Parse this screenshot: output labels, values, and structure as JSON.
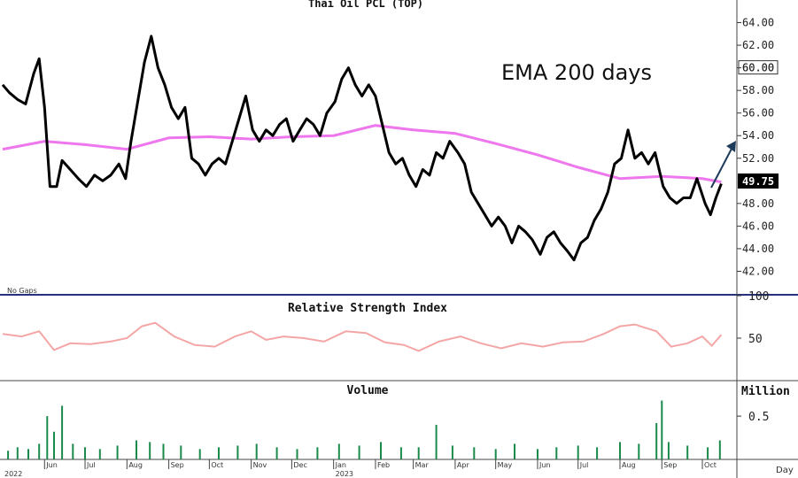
{
  "chart_data": {
    "type": "line",
    "title": "Thai Oil PCL (TOP)",
    "annotation": "EMA 200 days",
    "price_panel_note": "No Gaps",
    "last_price_label": "49.75",
    "colors": {
      "price": "#000000",
      "ema": "#ee77ee",
      "rsi": "#f4a6a6",
      "volume": "#1a8a4a",
      "arrow": "#1f3b5c",
      "last_price_bg": "#000000"
    },
    "price_axis": {
      "range": [
        40,
        66
      ],
      "ticks": [
        "42.00",
        "44.00",
        "46.00",
        "48.00",
        "52.00",
        "54.00",
        "56.00",
        "58.00",
        "60.00",
        "62.00",
        "64.00"
      ],
      "boxed_tick": "60.00"
    },
    "x_axis": {
      "range": [
        "2022-05-01",
        "2023-10-20"
      ],
      "months": [
        {
          "label": "Jun",
          "date": "2022-06-01"
        },
        {
          "label": "Jul",
          "date": "2022-07-01"
        },
        {
          "label": "Aug",
          "date": "2022-08-01"
        },
        {
          "label": "Sep",
          "date": "2022-09-01"
        },
        {
          "label": "Oct",
          "date": "2022-10-01"
        },
        {
          "label": "Nov",
          "date": "2022-11-01"
        },
        {
          "label": "Dec",
          "date": "2022-12-01"
        },
        {
          "label": "Jan",
          "date": "2023-01-01"
        },
        {
          "label": "Feb",
          "date": "2023-02-01"
        },
        {
          "label": "Mar",
          "date": "2023-03-01"
        },
        {
          "label": "Apr",
          "date": "2023-04-01"
        },
        {
          "label": "May",
          "date": "2023-05-01"
        },
        {
          "label": "Jun",
          "date": "2023-06-01"
        },
        {
          "label": "Jul",
          "date": "2023-07-01"
        },
        {
          "label": "Aug",
          "date": "2023-08-01"
        },
        {
          "label": "Sep",
          "date": "2023-09-01"
        },
        {
          "label": "Oct",
          "date": "2023-10-01"
        }
      ],
      "years": [
        {
          "label": "2022",
          "date": "2022-05-01"
        },
        {
          "label": "2023",
          "date": "2023-01-01"
        }
      ],
      "unit_label": "Day"
    },
    "price_series": [
      [
        "2022-05-01",
        58.5
      ],
      [
        "2022-05-06",
        57.8
      ],
      [
        "2022-05-12",
        57.2
      ],
      [
        "2022-05-18",
        56.8
      ],
      [
        "2022-05-24",
        59.5
      ],
      [
        "2022-05-28",
        60.8
      ],
      [
        "2022-06-01",
        56.5
      ],
      [
        "2022-06-05",
        49.5
      ],
      [
        "2022-06-10",
        49.5
      ],
      [
        "2022-06-14",
        51.8
      ],
      [
        "2022-06-20",
        51.0
      ],
      [
        "2022-06-26",
        50.2
      ],
      [
        "2022-07-02",
        49.5
      ],
      [
        "2022-07-08",
        50.5
      ],
      [
        "2022-07-14",
        50.0
      ],
      [
        "2022-07-20",
        50.5
      ],
      [
        "2022-07-26",
        51.5
      ],
      [
        "2022-07-31",
        50.2
      ],
      [
        "2022-08-04",
        53.5
      ],
      [
        "2022-08-09",
        57.0
      ],
      [
        "2022-08-14",
        60.5
      ],
      [
        "2022-08-19",
        62.8
      ],
      [
        "2022-08-24",
        60.0
      ],
      [
        "2022-08-29",
        58.5
      ],
      [
        "2022-09-03",
        56.5
      ],
      [
        "2022-09-08",
        55.5
      ],
      [
        "2022-09-13",
        56.5
      ],
      [
        "2022-09-18",
        52.0
      ],
      [
        "2022-09-23",
        51.5
      ],
      [
        "2022-09-28",
        50.5
      ],
      [
        "2022-10-03",
        51.5
      ],
      [
        "2022-10-08",
        52.0
      ],
      [
        "2022-10-13",
        51.5
      ],
      [
        "2022-10-18",
        53.5
      ],
      [
        "2022-10-23",
        55.5
      ],
      [
        "2022-10-28",
        57.5
      ],
      [
        "2022-11-02",
        54.5
      ],
      [
        "2022-11-07",
        53.5
      ],
      [
        "2022-11-12",
        54.5
      ],
      [
        "2022-11-17",
        54.0
      ],
      [
        "2022-11-22",
        55.0
      ],
      [
        "2022-11-27",
        55.5
      ],
      [
        "2022-12-02",
        53.5
      ],
      [
        "2022-12-07",
        54.5
      ],
      [
        "2022-12-12",
        55.5
      ],
      [
        "2022-12-17",
        55.0
      ],
      [
        "2022-12-22",
        54.0
      ],
      [
        "2022-12-27",
        56.0
      ],
      [
        "2023-01-02",
        57.0
      ],
      [
        "2023-01-07",
        59.0
      ],
      [
        "2023-01-12",
        60.0
      ],
      [
        "2023-01-17",
        58.5
      ],
      [
        "2023-01-22",
        57.5
      ],
      [
        "2023-01-27",
        58.5
      ],
      [
        "2023-02-01",
        57.5
      ],
      [
        "2023-02-06",
        55.0
      ],
      [
        "2023-02-11",
        52.5
      ],
      [
        "2023-02-16",
        51.5
      ],
      [
        "2023-02-21",
        52.0
      ],
      [
        "2023-02-26",
        50.5
      ],
      [
        "2023-03-03",
        49.5
      ],
      [
        "2023-03-08",
        51.0
      ],
      [
        "2023-03-13",
        50.5
      ],
      [
        "2023-03-18",
        52.5
      ],
      [
        "2023-03-23",
        52.0
      ],
      [
        "2023-03-28",
        53.5
      ],
      [
        "2023-04-03",
        52.5
      ],
      [
        "2023-04-08",
        51.5
      ],
      [
        "2023-04-13",
        49.0
      ],
      [
        "2023-04-18",
        48.0
      ],
      [
        "2023-04-23",
        47.0
      ],
      [
        "2023-04-28",
        46.0
      ],
      [
        "2023-05-03",
        46.8
      ],
      [
        "2023-05-08",
        46.0
      ],
      [
        "2023-05-13",
        44.5
      ],
      [
        "2023-05-18",
        46.0
      ],
      [
        "2023-05-23",
        45.5
      ],
      [
        "2023-05-28",
        44.8
      ],
      [
        "2023-06-03",
        43.5
      ],
      [
        "2023-06-08",
        45.0
      ],
      [
        "2023-06-13",
        45.5
      ],
      [
        "2023-06-18",
        44.5
      ],
      [
        "2023-06-23",
        43.8
      ],
      [
        "2023-06-28",
        43.0
      ],
      [
        "2023-07-03",
        44.5
      ],
      [
        "2023-07-08",
        45.0
      ],
      [
        "2023-07-13",
        46.5
      ],
      [
        "2023-07-18",
        47.5
      ],
      [
        "2023-07-23",
        49.0
      ],
      [
        "2023-07-28",
        51.5
      ],
      [
        "2023-08-02",
        52.0
      ],
      [
        "2023-08-07",
        54.5
      ],
      [
        "2023-08-12",
        52.0
      ],
      [
        "2023-08-17",
        52.5
      ],
      [
        "2023-08-22",
        51.5
      ],
      [
        "2023-08-27",
        52.5
      ],
      [
        "2023-09-02",
        49.5
      ],
      [
        "2023-09-07",
        48.5
      ],
      [
        "2023-09-12",
        48.0
      ],
      [
        "2023-09-17",
        48.5
      ],
      [
        "2023-09-22",
        48.5
      ],
      [
        "2023-09-27",
        50.2
      ],
      [
        "2023-10-03",
        48.0
      ],
      [
        "2023-10-07",
        47.0
      ],
      [
        "2023-10-11",
        48.5
      ],
      [
        "2023-10-15",
        49.75
      ]
    ],
    "ema_series": [
      [
        "2022-05-01",
        52.8
      ],
      [
        "2022-06-01",
        53.5
      ],
      [
        "2022-07-01",
        53.2
      ],
      [
        "2022-08-01",
        52.8
      ],
      [
        "2022-09-01",
        53.8
      ],
      [
        "2022-10-01",
        53.9
      ],
      [
        "2022-11-01",
        53.7
      ],
      [
        "2022-12-01",
        53.9
      ],
      [
        "2023-01-01",
        54.0
      ],
      [
        "2023-02-01",
        54.9
      ],
      [
        "2023-03-01",
        54.5
      ],
      [
        "2023-04-01",
        54.2
      ],
      [
        "2023-05-01",
        53.3
      ],
      [
        "2023-06-01",
        52.3
      ],
      [
        "2023-07-01",
        51.2
      ],
      [
        "2023-08-01",
        50.2
      ],
      [
        "2023-09-01",
        50.4
      ],
      [
        "2023-10-01",
        50.2
      ],
      [
        "2023-10-15",
        49.9
      ]
    ],
    "rsi_axis": {
      "range": [
        0,
        100
      ],
      "ticks": [
        "50",
        "100"
      ],
      "title": "Relative Strength Index"
    },
    "rsi_series": [
      [
        "2022-05-01",
        55
      ],
      [
        "2022-05-15",
        52
      ],
      [
        "2022-05-28",
        58
      ],
      [
        "2022-06-08",
        36
      ],
      [
        "2022-06-20",
        44
      ],
      [
        "2022-07-05",
        43
      ],
      [
        "2022-07-20",
        46
      ],
      [
        "2022-08-01",
        50
      ],
      [
        "2022-08-12",
        64
      ],
      [
        "2022-08-22",
        68
      ],
      [
        "2022-09-05",
        52
      ],
      [
        "2022-09-20",
        42
      ],
      [
        "2022-10-05",
        40
      ],
      [
        "2022-10-20",
        52
      ],
      [
        "2022-11-01",
        58
      ],
      [
        "2022-11-12",
        48
      ],
      [
        "2022-11-25",
        52
      ],
      [
        "2022-12-10",
        50
      ],
      [
        "2022-12-25",
        46
      ],
      [
        "2023-01-10",
        58
      ],
      [
        "2023-01-25",
        56
      ],
      [
        "2023-02-08",
        45
      ],
      [
        "2023-02-22",
        42
      ],
      [
        "2023-03-05",
        35
      ],
      [
        "2023-03-20",
        46
      ],
      [
        "2023-04-05",
        52
      ],
      [
        "2023-04-20",
        44
      ],
      [
        "2023-05-05",
        38
      ],
      [
        "2023-05-20",
        44
      ],
      [
        "2023-06-05",
        40
      ],
      [
        "2023-06-20",
        45
      ],
      [
        "2023-07-05",
        46
      ],
      [
        "2023-07-20",
        55
      ],
      [
        "2023-08-01",
        64
      ],
      [
        "2023-08-12",
        66
      ],
      [
        "2023-08-28",
        58
      ],
      [
        "2023-09-08",
        40
      ],
      [
        "2023-09-20",
        44
      ],
      [
        "2023-10-01",
        52
      ],
      [
        "2023-10-08",
        41
      ],
      [
        "2023-10-15",
        54
      ]
    ],
    "volume_axis": {
      "range": [
        0,
        0.9
      ],
      "ticks": [
        "0.5"
      ],
      "unit": "Million",
      "title": "Volume"
    },
    "volume_series": [
      [
        "2022-05-05",
        0.1
      ],
      [
        "2022-05-12",
        0.14
      ],
      [
        "2022-05-20",
        0.12
      ],
      [
        "2022-05-28",
        0.18
      ],
      [
        "2022-06-03",
        0.5
      ],
      [
        "2022-06-08",
        0.32
      ],
      [
        "2022-06-14",
        0.62
      ],
      [
        "2022-06-22",
        0.18
      ],
      [
        "2022-07-01",
        0.14
      ],
      [
        "2022-07-12",
        0.12
      ],
      [
        "2022-07-25",
        0.16
      ],
      [
        "2022-08-08",
        0.22
      ],
      [
        "2022-08-18",
        0.2
      ],
      [
        "2022-08-28",
        0.18
      ],
      [
        "2022-09-10",
        0.16
      ],
      [
        "2022-09-24",
        0.12
      ],
      [
        "2022-10-08",
        0.14
      ],
      [
        "2022-10-22",
        0.16
      ],
      [
        "2022-11-05",
        0.18
      ],
      [
        "2022-11-20",
        0.14
      ],
      [
        "2022-12-05",
        0.12
      ],
      [
        "2022-12-20",
        0.14
      ],
      [
        "2023-01-05",
        0.18
      ],
      [
        "2023-01-20",
        0.16
      ],
      [
        "2023-02-05",
        0.2
      ],
      [
        "2023-02-20",
        0.14
      ],
      [
        "2023-03-05",
        0.14
      ],
      [
        "2023-03-18",
        0.4
      ],
      [
        "2023-03-30",
        0.16
      ],
      [
        "2023-04-15",
        0.14
      ],
      [
        "2023-05-01",
        0.12
      ],
      [
        "2023-05-15",
        0.18
      ],
      [
        "2023-06-01",
        0.12
      ],
      [
        "2023-06-15",
        0.14
      ],
      [
        "2023-07-01",
        0.16
      ],
      [
        "2023-07-15",
        0.14
      ],
      [
        "2023-08-01",
        0.2
      ],
      [
        "2023-08-15",
        0.18
      ],
      [
        "2023-08-28",
        0.42
      ],
      [
        "2023-09-01",
        0.68
      ],
      [
        "2023-09-06",
        0.2
      ],
      [
        "2023-09-20",
        0.16
      ],
      [
        "2023-10-05",
        0.14
      ],
      [
        "2023-10-14",
        0.22
      ]
    ]
  }
}
